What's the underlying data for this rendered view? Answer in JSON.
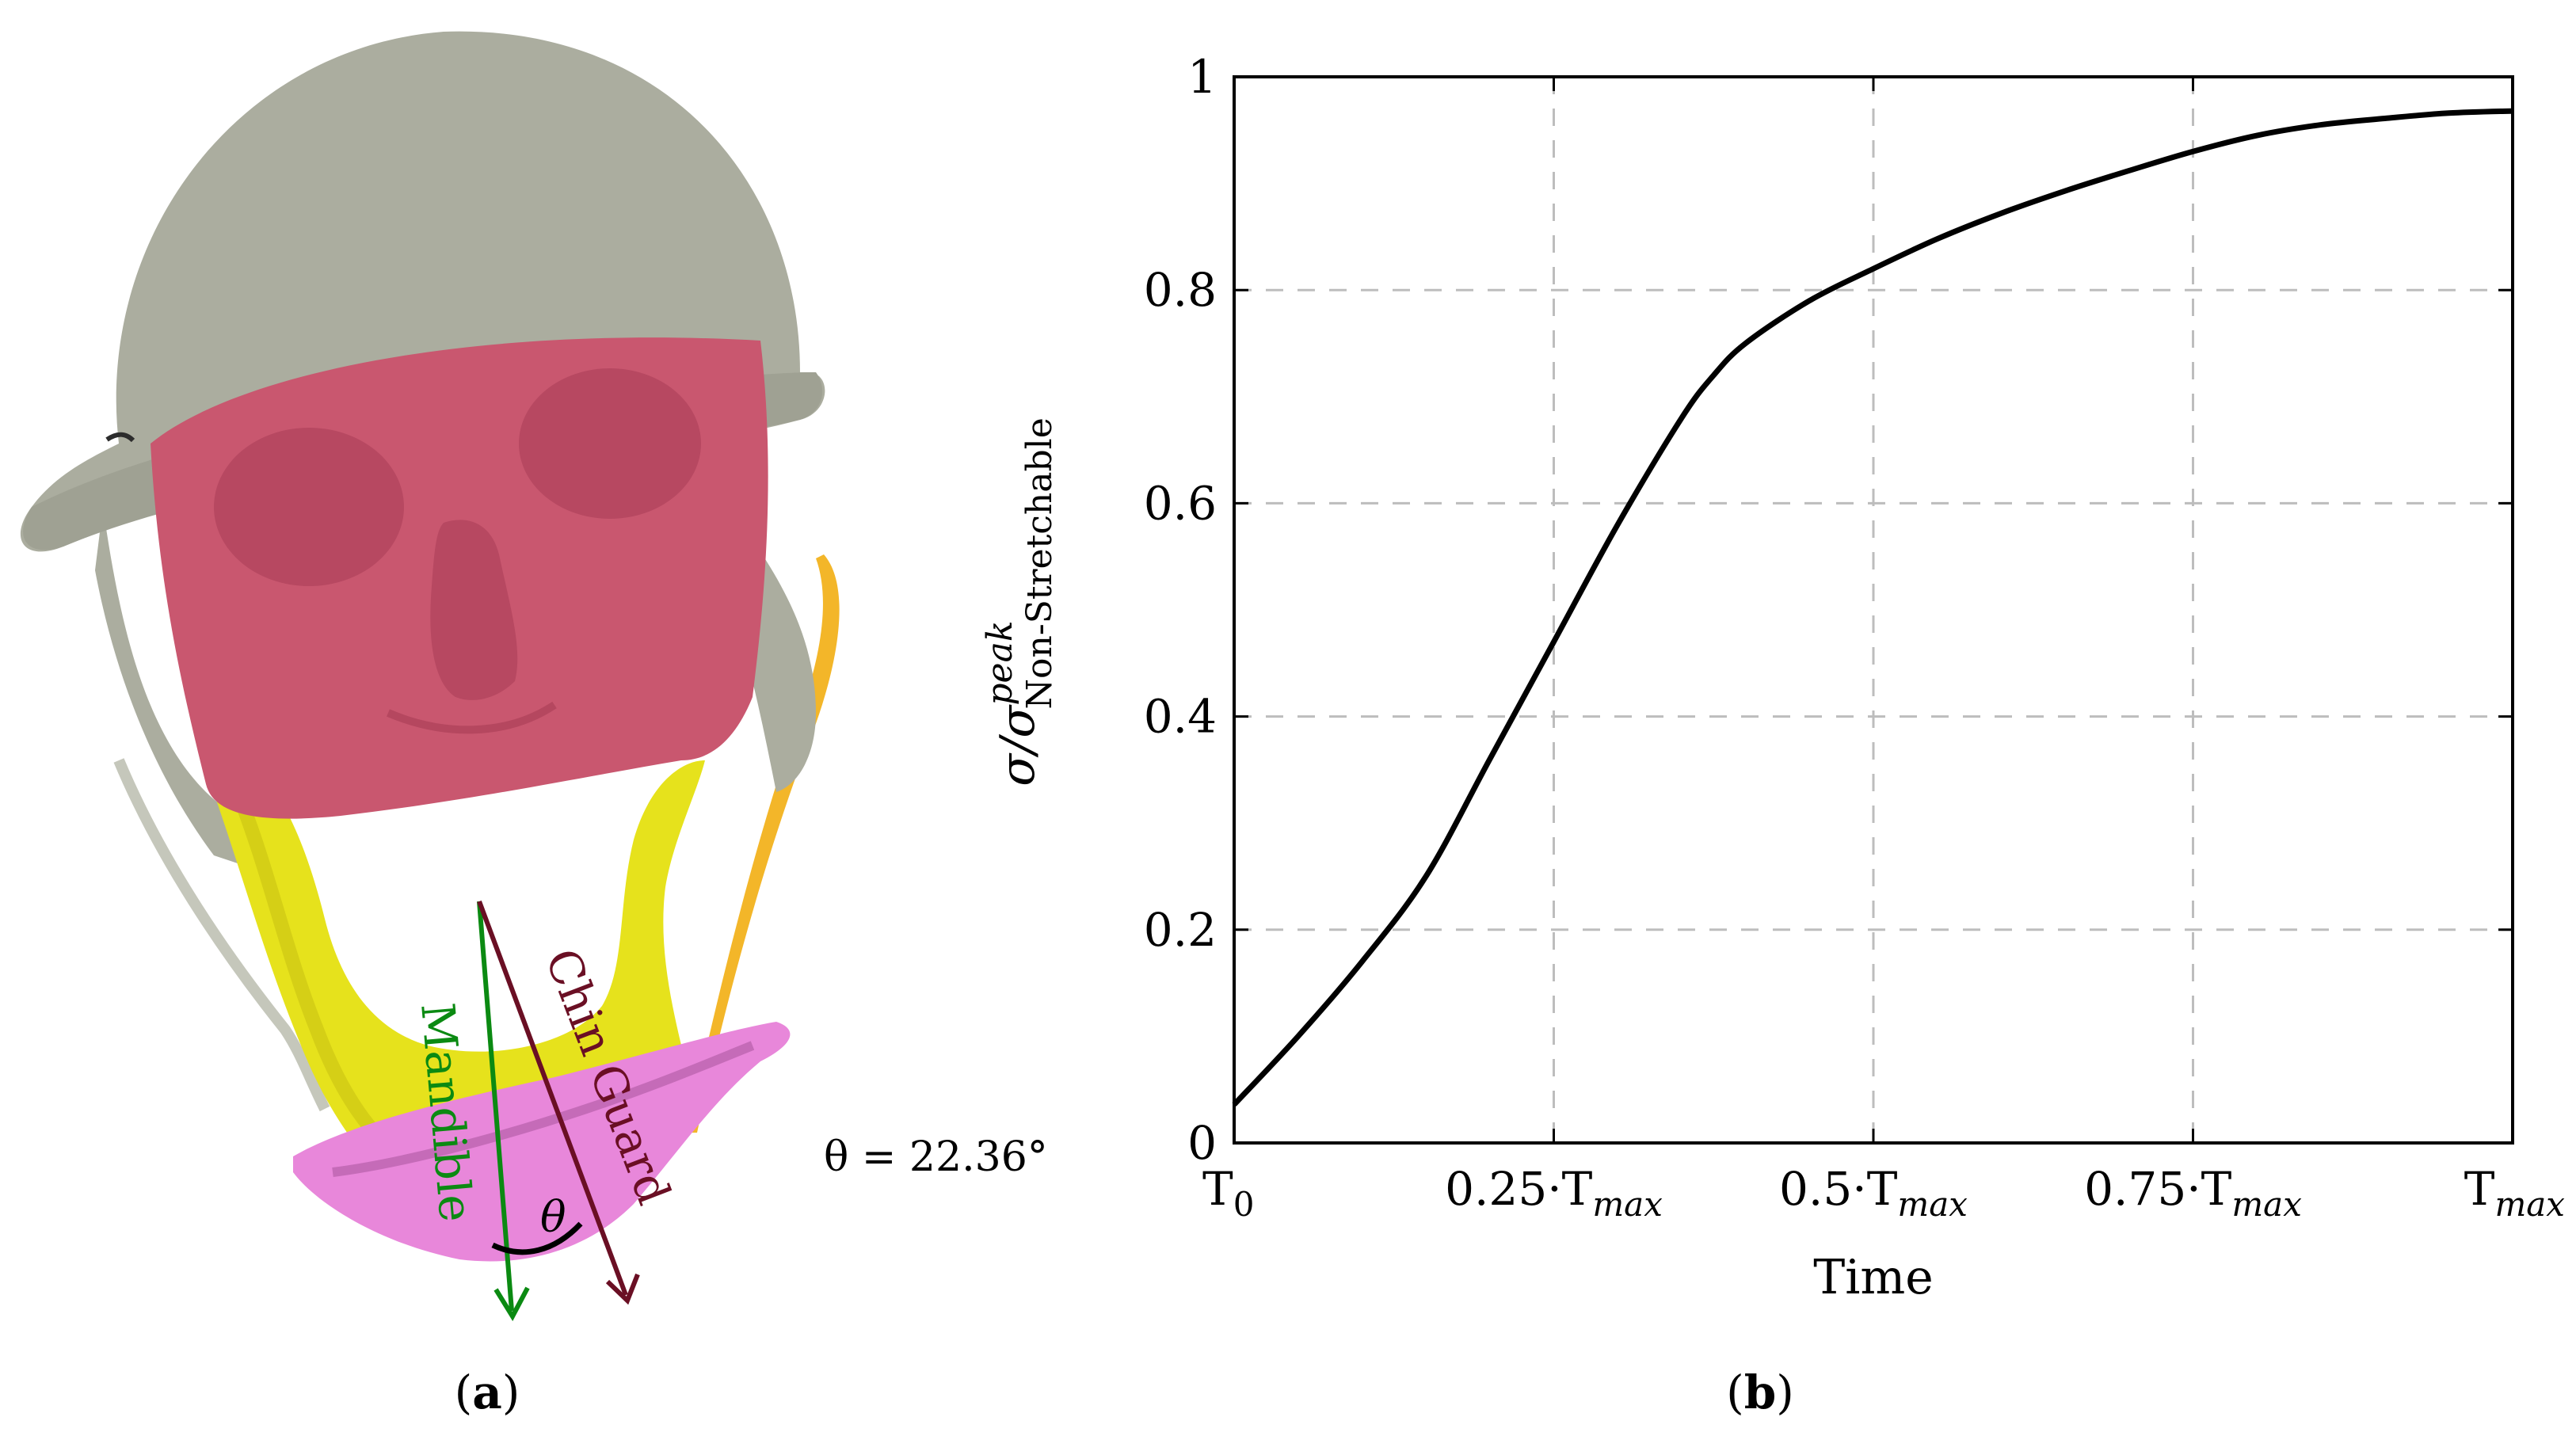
{
  "panel_a": {
    "label_open": "(",
    "label_letter": "a",
    "label_close": ")",
    "mandible_label": "Mandible",
    "chin_guard_label": "Chin Guard",
    "theta_symbol": "θ",
    "angle_equation": "θ = 22.36°",
    "colors": {
      "helmet": "#abad9f",
      "skull": "#c9576f",
      "mandible": "#e6e21c",
      "chin_guard": "#e887da",
      "mandible_arrow": "#0b8a12",
      "chin_guard_arrow": "#6a0f24",
      "strap": "#f2b21e"
    }
  },
  "panel_b": {
    "label_open": "(",
    "label_letter": "b",
    "label_close": ")"
  },
  "chart_data": {
    "type": "line",
    "xlabel": "Time",
    "ylabel": "σ/σ peak Non-Stretchable",
    "ylabel_parts": {
      "main": "σ/σ",
      "sup": "peak",
      "sub": "Non-Stretchable"
    },
    "xlim": [
      0,
      1
    ],
    "ylim": [
      0,
      1
    ],
    "grid": true,
    "x_ticks": [
      {
        "value": 0,
        "base": "T",
        "sub": "0",
        "prefix": ""
      },
      {
        "value": 0.25,
        "base": "T",
        "sub": "max",
        "prefix": "0.25·"
      },
      {
        "value": 0.5,
        "base": "T",
        "sub": "max",
        "prefix": "0.5·"
      },
      {
        "value": 0.75,
        "base": "T",
        "sub": "max",
        "prefix": "0.75·"
      },
      {
        "value": 1,
        "base": "T",
        "sub": "max",
        "prefix": ""
      }
    ],
    "y_ticks": [
      {
        "value": 0,
        "label": "0"
      },
      {
        "value": 0.2,
        "label": "0.2"
      },
      {
        "value": 0.4,
        "label": "0.4"
      },
      {
        "value": 0.6,
        "label": "0.6"
      },
      {
        "value": 0.8,
        "label": "0.8"
      },
      {
        "value": 1,
        "label": "1"
      }
    ],
    "series": [
      {
        "color": "#000000",
        "x": [
          0,
          0.05,
          0.1,
          0.15,
          0.2,
          0.25,
          0.3,
          0.35,
          0.375,
          0.4,
          0.45,
          0.5,
          0.55,
          0.6,
          0.65,
          0.7,
          0.75,
          0.8,
          0.85,
          0.9,
          0.95,
          1
        ],
        "y": [
          0.036,
          0.1,
          0.17,
          0.25,
          0.36,
          0.47,
          0.58,
          0.68,
          0.72,
          0.75,
          0.79,
          0.82,
          0.848,
          0.872,
          0.893,
          0.912,
          0.93,
          0.945,
          0.955,
          0.961,
          0.966,
          0.968
        ]
      }
    ]
  }
}
